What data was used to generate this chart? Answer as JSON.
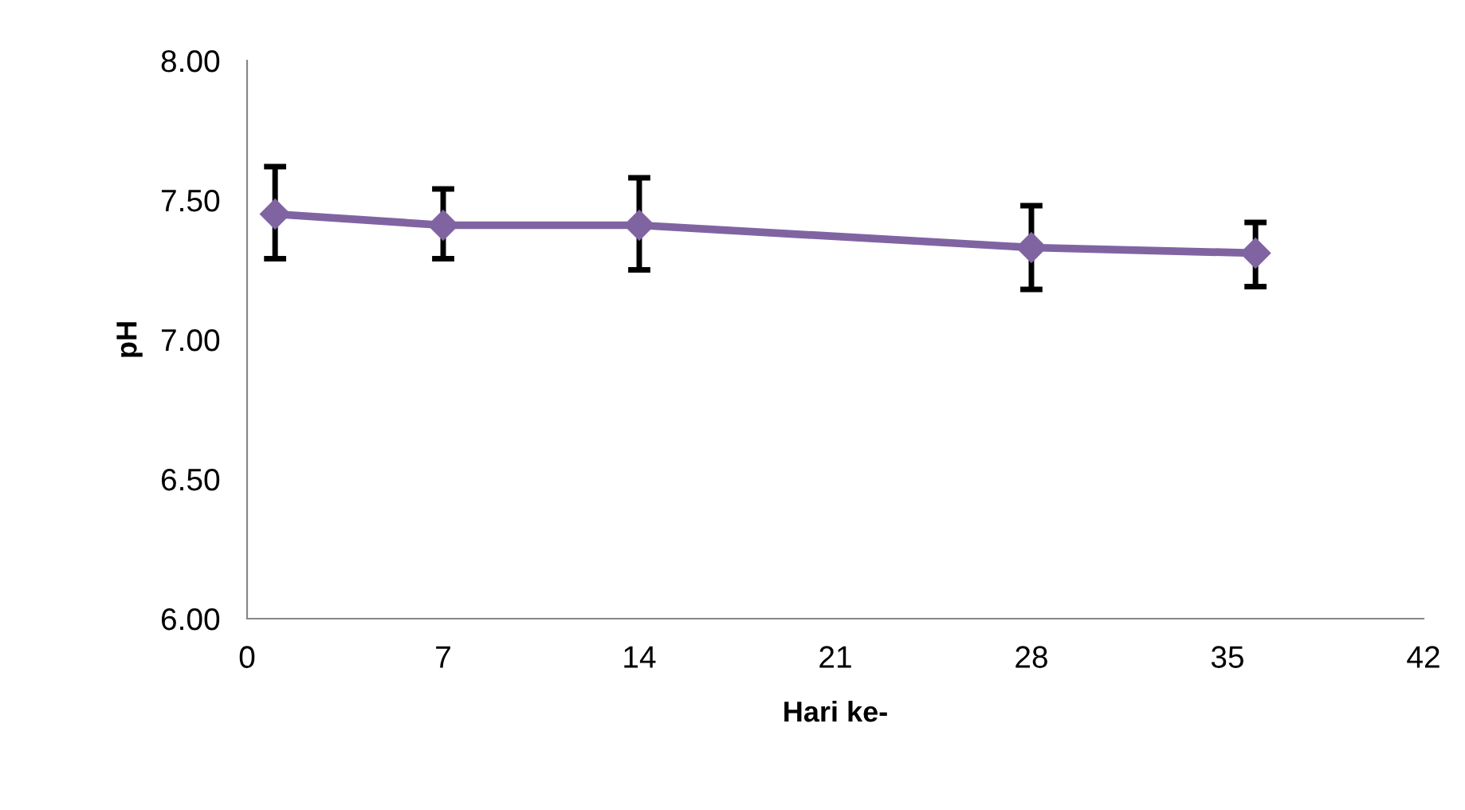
{
  "chart_data": {
    "type": "line",
    "xlabel": "Hari ke-",
    "ylabel": "pH",
    "x": [
      1,
      7,
      14,
      28,
      36
    ],
    "series": [
      {
        "color": "#8064a2",
        "values": [
          7.45,
          7.41,
          7.41,
          7.33,
          7.31
        ],
        "errors": [
          [
            7.29,
            7.62
          ],
          [
            7.29,
            7.54
          ],
          [
            7.25,
            7.58
          ],
          [
            7.18,
            7.48
          ],
          [
            7.19,
            7.42
          ]
        ]
      }
    ],
    "xlim": [
      0,
      42
    ],
    "xticks": [
      0,
      7,
      14,
      21,
      28,
      35,
      42
    ],
    "ylim": [
      6,
      8
    ],
    "yticks": [
      {
        "value": 6,
        "label": "6.00"
      },
      {
        "value": 6.5,
        "label": "6.50"
      },
      {
        "value": 7,
        "label": "7.00"
      },
      {
        "value": 7.5,
        "label": "7.50"
      },
      {
        "value": 8,
        "label": "8.00"
      }
    ],
    "grid": false,
    "legend": false,
    "marker": "diamond",
    "line_style": "solid"
  }
}
